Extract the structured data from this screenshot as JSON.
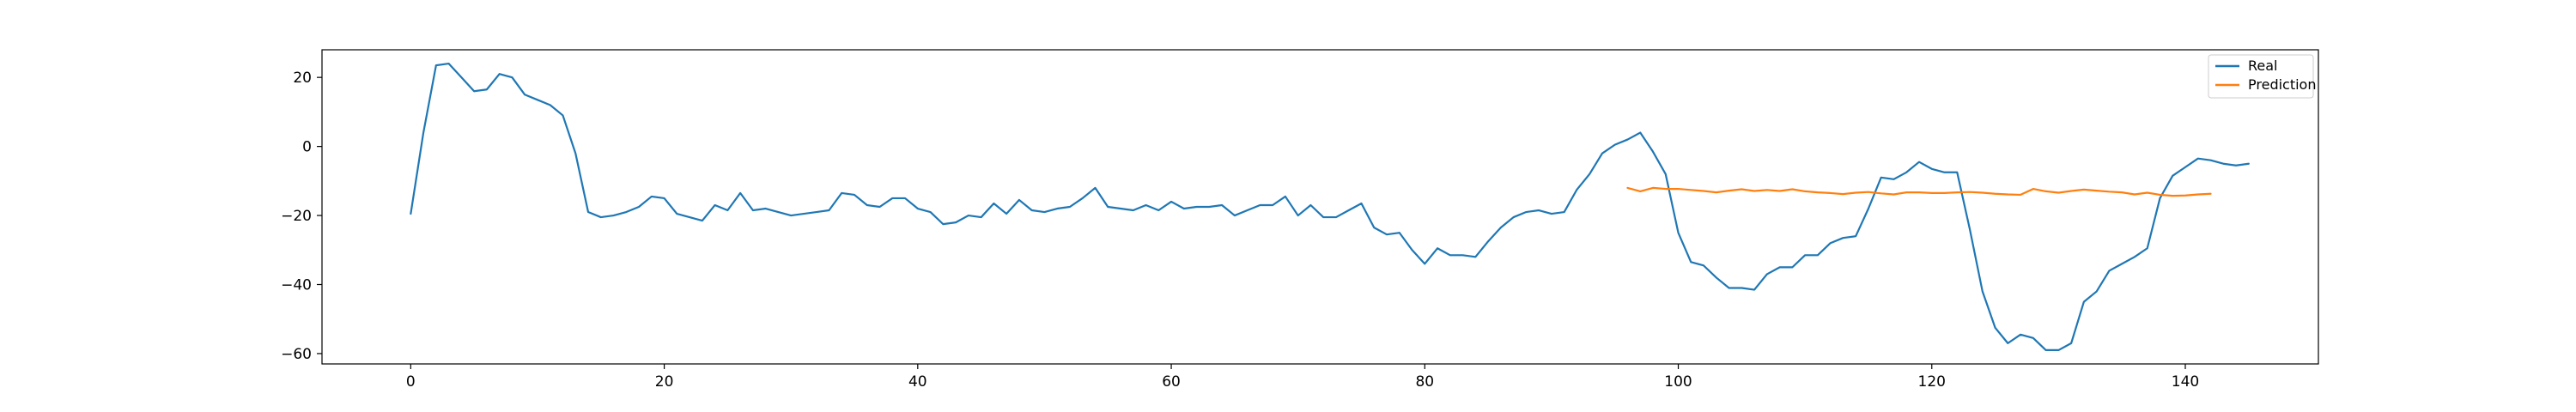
{
  "chart_data": {
    "type": "line",
    "title": "",
    "xlabel": "",
    "ylabel": "",
    "xlim": [
      -7,
      150.5
    ],
    "ylim": [
      -63,
      28
    ],
    "grid": false,
    "legend_position": "top-right",
    "xticks": [
      0,
      20,
      40,
      60,
      80,
      100,
      120,
      140
    ],
    "yticks": [
      20,
      0,
      -20,
      -40,
      -60
    ],
    "series": [
      {
        "name": "Real",
        "color": "#1f77b4",
        "x_start": 0,
        "values": [
          -19.5,
          4,
          23.5,
          24,
          20,
          16,
          16.5,
          21,
          20,
          15,
          13.5,
          12,
          9,
          -2,
          -19,
          -20.5,
          -20,
          -19,
          -17.5,
          -14.5,
          -15,
          -19.5,
          -20.5,
          -21.5,
          -17,
          -18.5,
          -13.5,
          -18.5,
          -18,
          -19,
          -20,
          -19.5,
          -19,
          -18.5,
          -13.5,
          -14,
          -17,
          -17.5,
          -15,
          -15,
          -18,
          -19,
          -22.5,
          -22,
          -20,
          -20.5,
          -16.5,
          -19.5,
          -15.5,
          -18.5,
          -19,
          -18,
          -17.5,
          -15,
          -12,
          -17.5,
          -18,
          -18.5,
          -17,
          -18.5,
          -16,
          -18,
          -17.5,
          -17.5,
          -17,
          -20,
          -18.5,
          -17,
          -17,
          -14.5,
          -20,
          -17,
          -20.5,
          -20.5,
          -18.5,
          -16.5,
          -23.5,
          -25.5,
          -25,
          -30,
          -34,
          -29.5,
          -31.5,
          -31.5,
          -32,
          -27.5,
          -23.5,
          -20.5,
          -19,
          -18.5,
          -19.5,
          -19,
          -12.5,
          -8,
          -2,
          0.5,
          2,
          4,
          -1.5,
          -8,
          -25,
          -33.5,
          -34.5,
          -38,
          -41,
          -41,
          -41.5,
          -37,
          -35,
          -35,
          -31.5,
          -31.5,
          -28,
          -26.5,
          -26,
          -18,
          -9,
          -9.5,
          -7.5,
          -4.5,
          -6.5,
          -7.5,
          -7.5,
          -24,
          -42,
          -52.5,
          -57,
          -54.5,
          -55.5,
          -59,
          -59,
          -57,
          -45,
          -42,
          -36,
          -34,
          -32,
          -29.5,
          -15,
          -8.5,
          -6,
          -3.5,
          -4,
          -5,
          -5.5,
          -5
        ]
      },
      {
        "name": "Prediction",
        "color": "#ff7f0e",
        "x_start": 96,
        "values": [
          -12,
          -13,
          -12,
          -12.3,
          -12.3,
          -12.6,
          -12.9,
          -13.3,
          -12.8,
          -12.4,
          -12.9,
          -12.6,
          -12.9,
          -12.4,
          -13,
          -13.3,
          -13.5,
          -13.8,
          -13.4,
          -13.2,
          -13.6,
          -13.9,
          -13.3,
          -13.3,
          -13.5,
          -13.5,
          -13.3,
          -13.2,
          -13.4,
          -13.7,
          -13.9,
          -14,
          -12.3,
          -13,
          -13.4,
          -12.9,
          -12.5,
          -12.8,
          -13.1,
          -13.3,
          -13.9,
          -13.4,
          -14,
          -14.3,
          -14.2,
          -13.9,
          -13.7
        ]
      }
    ]
  }
}
